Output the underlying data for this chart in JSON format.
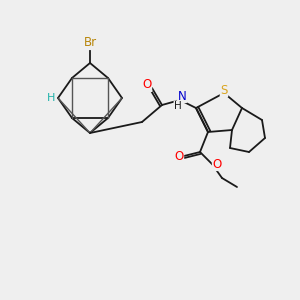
{
  "background_color": "#EFEFEF",
  "bond_color": "#1a1a1a",
  "atom_colors": {
    "Br": "#B8860B",
    "H": "#20B2AA",
    "S": "#DAA520",
    "N": "#0000CD",
    "O": "#FF0000",
    "C": "#1a1a1a"
  },
  "fig_width": 3.0,
  "fig_height": 3.0,
  "dpi": 100
}
